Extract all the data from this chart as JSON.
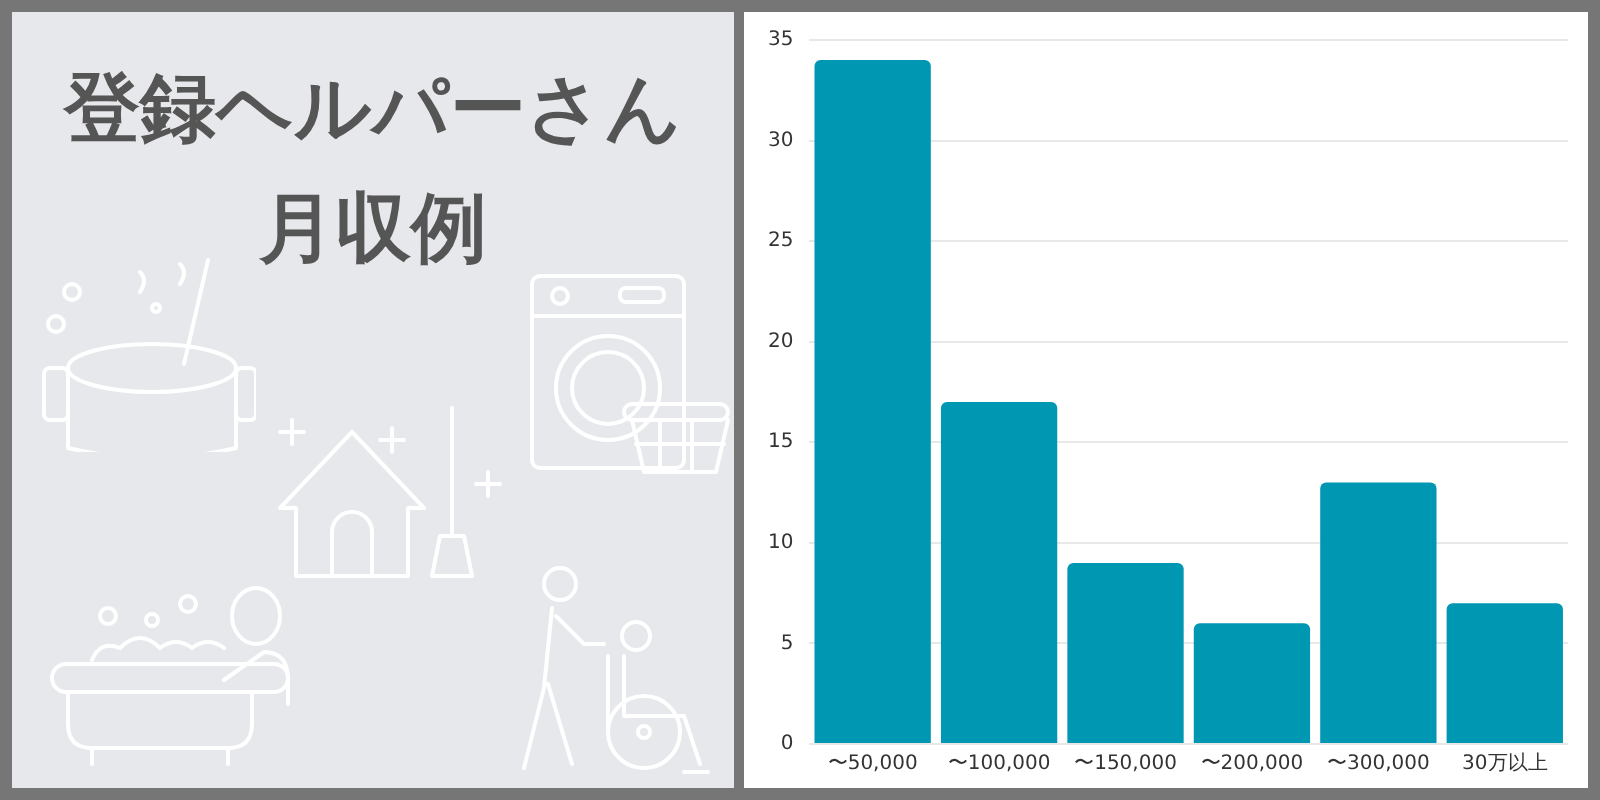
{
  "chart_data": {
    "type": "bar",
    "title": "登録ヘルパーさん月収例",
    "categories": [
      "〜50,000",
      "〜100,000",
      "〜150,000",
      "〜200,000",
      "〜300,000",
      "30万以上"
    ],
    "values": [
      34,
      17,
      9,
      6,
      13,
      7
    ],
    "color": "#0097b2",
    "ylim": [
      0,
      35
    ],
    "yticks": [
      0,
      5,
      10,
      15,
      20,
      25,
      30,
      35
    ],
    "grid": "y",
    "legend": false
  }
}
